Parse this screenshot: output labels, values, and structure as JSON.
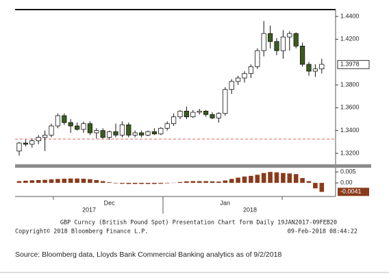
{
  "chart_data": [
    {
      "type": "candlestick",
      "categories": [
        null,
        null,
        null,
        null,
        null,
        null,
        null,
        null,
        null,
        null,
        null,
        null,
        null,
        null,
        null,
        null,
        null,
        null,
        null,
        null,
        null,
        null,
        null,
        null,
        null,
        null,
        null,
        null,
        null,
        null,
        null,
        null,
        null,
        null,
        null,
        null,
        null,
        null,
        null,
        null,
        null,
        null,
        null,
        null,
        null,
        null,
        null,
        null
      ],
      "open": [
        1.322,
        1.329,
        1.328,
        1.331,
        1.334,
        1.336,
        1.344,
        1.353,
        1.347,
        1.344,
        1.341,
        1.346,
        1.338,
        1.34,
        1.334,
        1.339,
        1.336,
        1.345,
        1.336,
        1.338,
        1.336,
        1.339,
        1.337,
        1.342,
        1.346,
        1.352,
        1.357,
        1.352,
        1.356,
        1.357,
        1.354,
        1.351,
        1.355,
        1.376,
        1.383,
        1.386,
        1.39,
        1.396,
        1.41,
        1.425,
        1.418,
        1.41,
        1.422,
        1.425,
        1.414,
        1.398,
        1.392,
        1.394
      ],
      "high": [
        1.33,
        1.332,
        1.333,
        1.336,
        1.34,
        1.346,
        1.355,
        1.355,
        1.35,
        1.347,
        1.348,
        1.348,
        1.342,
        1.342,
        1.34,
        1.346,
        1.348,
        1.347,
        1.34,
        1.34,
        1.34,
        1.342,
        1.343,
        1.348,
        1.355,
        1.358,
        1.361,
        1.358,
        1.359,
        1.358,
        1.356,
        1.356,
        1.378,
        1.385,
        1.388,
        1.392,
        1.398,
        1.412,
        1.436,
        1.432,
        1.421,
        1.428,
        1.427,
        1.426,
        1.417,
        1.4,
        1.398,
        1.403
      ],
      "low": [
        1.318,
        1.326,
        1.325,
        1.328,
        1.322,
        1.334,
        1.342,
        1.345,
        1.338,
        1.34,
        1.338,
        1.336,
        1.333,
        1.333,
        1.332,
        1.334,
        1.334,
        1.334,
        1.334,
        1.334,
        1.335,
        1.336,
        1.336,
        1.34,
        1.344,
        1.35,
        1.35,
        1.351,
        1.354,
        1.352,
        1.35,
        1.347,
        1.353,
        1.372,
        1.38,
        1.382,
        1.386,
        1.394,
        1.405,
        1.412,
        1.406,
        1.403,
        1.41,
        1.412,
        1.396,
        1.388,
        1.387,
        1.39
      ],
      "close": [
        1.329,
        1.328,
        1.331,
        1.334,
        1.336,
        1.344,
        1.353,
        1.347,
        1.344,
        1.341,
        1.346,
        1.338,
        1.34,
        1.334,
        1.339,
        1.336,
        1.345,
        1.336,
        1.338,
        1.336,
        1.339,
        1.337,
        1.342,
        1.346,
        1.352,
        1.357,
        1.352,
        1.356,
        1.357,
        1.354,
        1.351,
        1.355,
        1.376,
        1.383,
        1.386,
        1.39,
        1.396,
        1.41,
        1.425,
        1.418,
        1.41,
        1.422,
        1.425,
        1.414,
        1.398,
        1.392,
        1.394,
        1.398
      ],
      "up_color": "#ffffff",
      "down_color": "#3d5c1e",
      "ylim": [
        1.3104,
        1.4454
      ],
      "yticks": [
        {
          "value": 1.32,
          "label": "1.3200"
        },
        {
          "value": 1.34,
          "label": "1.3400"
        },
        {
          "value": 1.36,
          "label": "1.3600"
        },
        {
          "value": 1.38,
          "label": "1.3800"
        },
        {
          "value": 1.42,
          "label": "1.4200"
        },
        {
          "value": 1.44,
          "label": "1.4400"
        }
      ],
      "last_value": 1.3978,
      "reference_line": 1.3325,
      "reference_color": "#e06060"
    },
    {
      "type": "bar",
      "categories": [
        null,
        null,
        null,
        null,
        null,
        null,
        null,
        null,
        null,
        null,
        null,
        null,
        null,
        null,
        "Dec",
        null,
        null,
        null,
        null,
        null,
        null,
        null,
        null,
        null,
        null,
        null,
        null,
        null,
        null,
        null,
        null,
        null,
        "Jan",
        null,
        null,
        null,
        null,
        null,
        null,
        null,
        null,
        null,
        null,
        null,
        null,
        null,
        null,
        null
      ],
      "values": [
        0.0008,
        0.001,
        0.0012,
        0.0013,
        0.0014,
        0.0016,
        0.0018,
        0.0019,
        0.002,
        0.002,
        0.0019,
        0.0017,
        0.0013,
        0.0008,
        0.0003,
        -0.0002,
        -0.0004,
        -0.0005,
        -0.0005,
        -0.0005,
        -0.0005,
        -0.0005,
        -0.0004,
        -0.0002,
        0.0001,
        0.0004,
        0.0007,
        0.0008,
        0.0008,
        0.0008,
        0.0007,
        0.0006,
        0.0011,
        0.0018,
        0.0024,
        0.0029,
        0.0032,
        0.0037,
        0.0045,
        0.005,
        0.0048,
        0.0045,
        0.0043,
        0.004,
        0.0022,
        0.0008,
        -0.0025,
        -0.0041
      ],
      "color": "#8a3b1c",
      "ylim": [
        -0.0062,
        0.0066
      ],
      "yticks": [
        {
          "value": 0,
          "label": "0.00"
        },
        0.005
      ],
      "last_value": -0.0041,
      "year_labels": [
        "2017",
        "2018"
      ]
    }
  ],
  "footer": {
    "description": "GBP Curncy (British Pound Spot) Presentation Chart form  Daily 19JAN2017-09FEB20",
    "copyright": "Copyright© 2018 Bloomberg Finance L.P.",
    "timestamp": "09-Feb-2018 08:44:22"
  },
  "source": "Source: Bloomberg data, Lloyds Bank Commercial Banking analytics as of 9/2/2018"
}
